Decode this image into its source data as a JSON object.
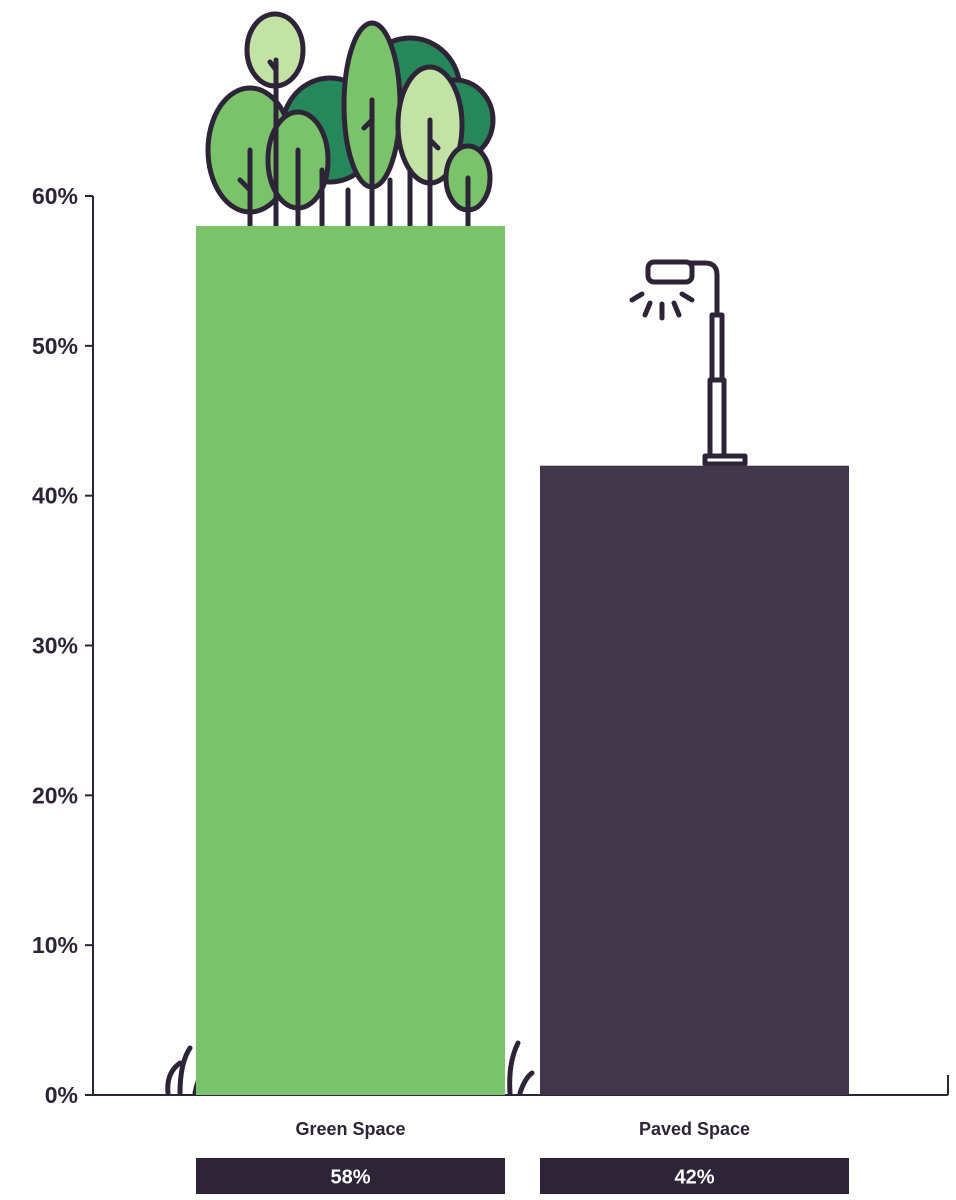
{
  "chart_data": {
    "type": "bar",
    "categories": [
      "Green Space",
      "Paved Space"
    ],
    "values": [
      58,
      42
    ],
    "value_labels": [
      "58%",
      "42%"
    ],
    "colors": [
      "#7bc36a",
      "#40374a"
    ],
    "ylim": [
      0,
      60
    ],
    "yticks": [
      {
        "value": 0,
        "label": "0%"
      },
      {
        "value": 10,
        "label": "10%"
      },
      {
        "value": 20,
        "label": "20%"
      },
      {
        "value": 30,
        "label": "30%"
      },
      {
        "value": 40,
        "label": "40%"
      },
      {
        "value": 50,
        "label": "50%"
      },
      {
        "value": 60,
        "label": "60%"
      }
    ]
  }
}
